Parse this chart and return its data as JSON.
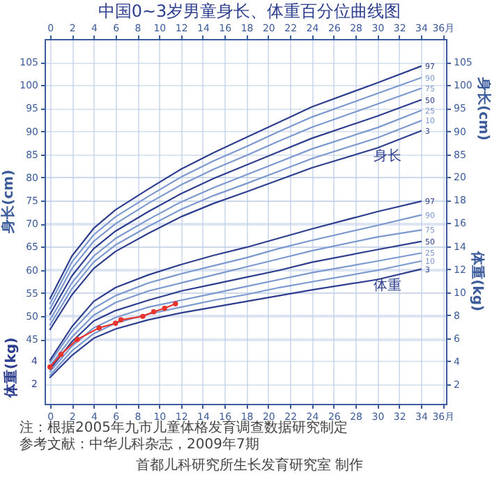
{
  "chart_data": {
    "type": "line",
    "title": "中国0~3岁男童身长、体重百分位曲线图",
    "xlim": [
      -0.5,
      36.3
    ],
    "xticks": [
      0,
      2,
      4,
      6,
      8,
      10,
      12,
      14,
      16,
      18,
      20,
      22,
      24,
      26,
      28,
      30,
      32,
      34,
      {
        "value": 36,
        "label": "36月"
      }
    ],
    "x2lim": [
      -0.5,
      36.3
    ],
    "x2ticks": [
      0,
      2,
      4,
      6,
      8,
      10,
      12,
      14,
      16,
      18,
      20,
      22,
      24,
      26,
      28,
      30,
      32,
      34,
      {
        "value": 36,
        "label": "36月"
      }
    ],
    "ylabel": "身长(cm)",
    "ylim": [
      31,
      110
    ],
    "yticks": [
      45,
      50,
      55,
      60,
      65,
      70,
      75,
      80,
      85,
      90,
      95,
      100,
      105
    ],
    "y2label": "体重(kg)",
    "y2lim": [
      0.3,
      32
    ],
    "y2ticks": [
      2,
      4,
      6,
      8,
      10,
      12,
      14,
      16,
      18,
      20
    ],
    "y3label": "身长(cm)",
    "y3lim": [
      31,
      110
    ],
    "y3ticks": [
      85,
      90,
      95,
      100,
      105
    ],
    "grid": true,
    "x": [
      0,
      2,
      4,
      6,
      9,
      12,
      15,
      18,
      21,
      24,
      30,
      34
    ],
    "series": [
      {
        "name": "3",
        "color": "#2d3e8e",
        "values": [
          47.1,
          54.6,
          60.3,
          64.0,
          67.9,
          71.5,
          74.4,
          76.9,
          79.5,
          82.1,
          86.4,
          90.1
        ]
      },
      {
        "name": "10",
        "color": "#7b98cf",
        "values": [
          48.1,
          55.9,
          61.7,
          65.4,
          69.4,
          73.1,
          76.1,
          78.7,
          81.4,
          84.1,
          88.6,
          92.3
        ]
      },
      {
        "name": "25",
        "color": "#7b98cf",
        "values": [
          49.2,
          57.2,
          63.0,
          66.8,
          70.9,
          74.7,
          77.8,
          80.6,
          83.4,
          86.2,
          90.8,
          94.5
        ]
      },
      {
        "name": "50",
        "color": "#2d3e8e",
        "values": [
          50.4,
          58.7,
          64.6,
          68.4,
          72.6,
          76.5,
          79.8,
          82.7,
          85.6,
          88.5,
          93.3,
          96.8
        ]
      },
      {
        "name": "75",
        "color": "#7b98cf",
        "values": [
          51.6,
          60.3,
          66.2,
          70.0,
          74.4,
          78.4,
          81.8,
          84.8,
          87.9,
          90.9,
          95.9,
          99.3
        ]
      },
      {
        "name": "90",
        "color": "#7b98cf",
        "values": [
          52.7,
          61.7,
          67.6,
          71.5,
          75.9,
          80.1,
          83.6,
          86.7,
          90.0,
          93.1,
          98.2,
          101.6
        ]
      },
      {
        "name": "97",
        "color": "#2d3e8e",
        "values": [
          53.8,
          63.0,
          69.0,
          73.0,
          77.5,
          81.8,
          85.4,
          88.7,
          92.0,
          95.3,
          100.5,
          104.1
        ]
      },
      {
        "name": "3",
        "color": "#2d3e8e",
        "axis": "y2",
        "values": [
          2.6,
          4.5,
          6.0,
          6.8,
          7.6,
          8.2,
          8.7,
          9.2,
          9.7,
          10.2,
          11.1,
          12.0
        ]
      },
      {
        "name": "10",
        "color": "#7b98cf",
        "axis": "y2",
        "values": [
          2.8,
          4.9,
          6.4,
          7.3,
          8.1,
          8.7,
          9.3,
          9.8,
          10.4,
          10.9,
          11.9,
          12.7
        ]
      },
      {
        "name": "25",
        "color": "#7b98cf",
        "axis": "y2",
        "values": [
          3.1,
          5.3,
          6.9,
          7.8,
          8.7,
          9.3,
          9.9,
          10.5,
          11.1,
          11.7,
          12.7,
          13.4
        ]
      },
      {
        "name": "50",
        "color": "#2d3e8e",
        "axis": "y2",
        "values": [
          3.3,
          5.7,
          7.5,
          8.4,
          9.3,
          10.1,
          10.7,
          11.3,
          11.9,
          12.6,
          13.7,
          14.4
        ]
      },
      {
        "name": "75",
        "color": "#7b98cf",
        "axis": "y2",
        "values": [
          3.6,
          6.1,
          8.0,
          9.1,
          10.1,
          10.8,
          11.5,
          12.2,
          12.9,
          13.6,
          14.8,
          15.4
        ]
      },
      {
        "name": "90",
        "color": "#7b98cf",
        "axis": "y2",
        "values": [
          3.9,
          6.6,
          8.6,
          9.7,
          10.8,
          11.6,
          12.3,
          13.0,
          13.8,
          14.5,
          15.8,
          16.7
        ]
      },
      {
        "name": "97",
        "color": "#2d3e8e",
        "axis": "y2",
        "values": [
          4.1,
          7.0,
          9.2,
          10.4,
          11.5,
          12.4,
          13.2,
          13.9,
          14.7,
          15.5,
          17.0,
          17.9
        ]
      },
      {
        "color": "#e8342c",
        "axis": "y2",
        "marker": "circle",
        "x": [
          0,
          1,
          2.5,
          4.5,
          6,
          6.5,
          8.5,
          9.5,
          10.5,
          11.5
        ],
        "values": [
          3.5,
          4.6,
          5.9,
          6.9,
          7.3,
          7.6,
          7.9,
          8.3,
          8.6,
          9.0
        ]
      }
    ],
    "annotations": [
      "身长",
      "体重",
      "体重(kg)",
      "4",
      "2",
      "注：根据2005年九市儿童体格发育调查数据研究制定",
      "参考文献：中华儿科杂志，2009年7期",
      "首都儿科研究所生长发育研究室 制作"
    ]
  }
}
